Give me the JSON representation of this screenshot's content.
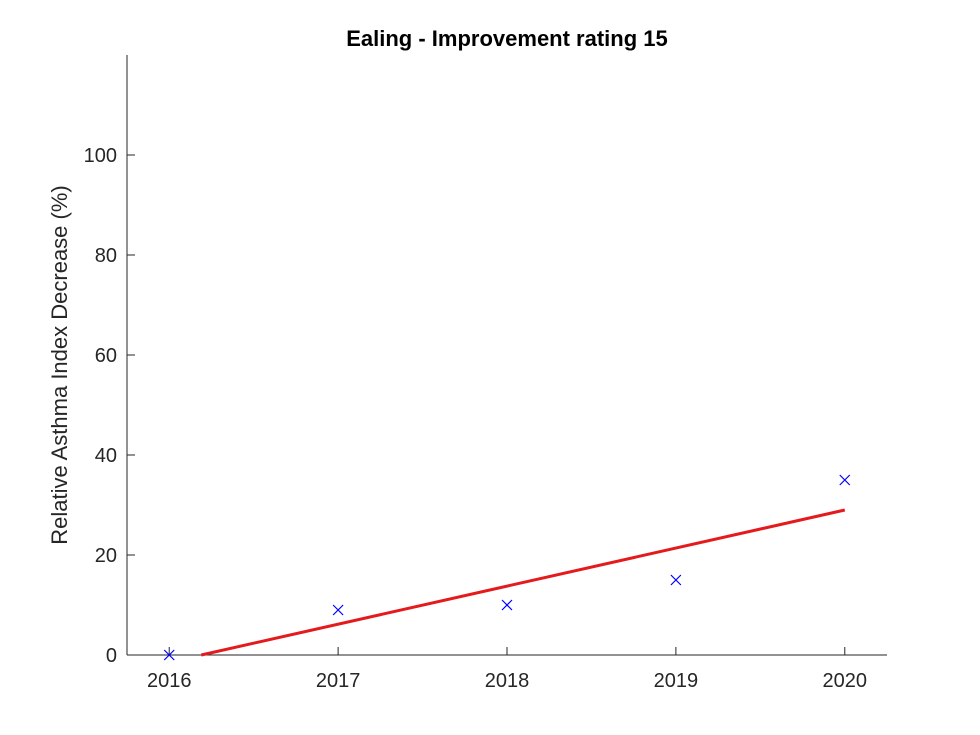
{
  "chart_data": {
    "type": "scatter",
    "title": "Ealing - Improvement rating 15",
    "xlabel": "",
    "ylabel": "Relative Asthma Index Decrease (%)",
    "x_ticks": [
      2016,
      2017,
      2018,
      2019,
      2020
    ],
    "y_ticks": [
      0,
      20,
      40,
      60,
      80,
      100
    ],
    "xlim": [
      2015.75,
      2020.25
    ],
    "ylim": [
      0,
      120
    ],
    "grid": false,
    "series": [
      {
        "kind": "markers",
        "marker": "x",
        "color": "#0000ff",
        "x": [
          2016,
          2017,
          2018,
          2019,
          2020
        ],
        "y": [
          0,
          9,
          10,
          15,
          35
        ]
      },
      {
        "kind": "line",
        "color": "#e41a1c",
        "x": [
          2016.19,
          2020
        ],
        "y": [
          0,
          29
        ]
      }
    ]
  }
}
